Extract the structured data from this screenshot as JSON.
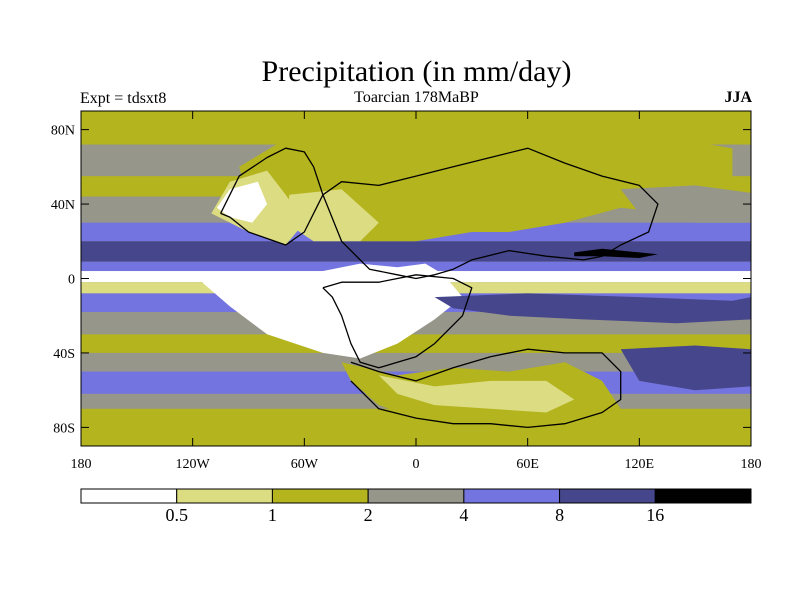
{
  "chart_data": {
    "type": "heatmap",
    "title": "Precipitation (in mm/day)",
    "experiment_label": "Expt = tdsxt8",
    "subtitle": "Toarcian 178MaBP",
    "season": "JJA",
    "x_ticks": [
      "180",
      "120W",
      "60W",
      "0",
      "60E",
      "120E",
      "180"
    ],
    "x_tick_values": [
      -180,
      -120,
      -60,
      0,
      60,
      120,
      180
    ],
    "y_ticks": [
      "80N",
      "40N",
      "0",
      "40S",
      "80S"
    ],
    "y_tick_values": [
      80,
      40,
      0,
      -40,
      -80
    ],
    "xlim": [
      -180,
      180
    ],
    "ylim": [
      -90,
      90
    ],
    "colorbar": {
      "levels": [
        "0.5",
        "1",
        "2",
        "4",
        "8",
        "16"
      ],
      "colors": [
        "#ffffff",
        "#dcdc82",
        "#b4b41e",
        "#96968a",
        "#7474e0",
        "#46468c",
        "#000000"
      ]
    },
    "zonal_bands": [
      {
        "lat_top": 90,
        "lat_bottom": 72,
        "level": 2
      },
      {
        "lat_top": 72,
        "lat_bottom": 55,
        "level": 3
      },
      {
        "lat_top": 55,
        "lat_bottom": 44,
        "level": 2
      },
      {
        "lat_top": 44,
        "lat_bottom": 30,
        "level": 3
      },
      {
        "lat_top": 30,
        "lat_bottom": 20,
        "level": 4
      },
      {
        "lat_top": 20,
        "lat_bottom": 9,
        "level": 5
      },
      {
        "lat_top": 9,
        "lat_bottom": 4,
        "level": 4
      },
      {
        "lat_top": 4,
        "lat_bottom": -2,
        "level": 0
      },
      {
        "lat_top": -2,
        "lat_bottom": -8,
        "level": 1
      },
      {
        "lat_top": -8,
        "lat_bottom": -18,
        "level": 4
      },
      {
        "lat_top": -18,
        "lat_bottom": -30,
        "level": 3
      },
      {
        "lat_top": -30,
        "lat_bottom": -40,
        "level": 2
      },
      {
        "lat_top": -40,
        "lat_bottom": -50,
        "level": 3
      },
      {
        "lat_top": -50,
        "lat_bottom": -62,
        "level": 4
      },
      {
        "lat_top": -62,
        "lat_bottom": -70,
        "level": 3
      },
      {
        "lat_top": -70,
        "lat_bottom": -90,
        "level": 2
      }
    ],
    "regions": [
      {
        "name": "northern-continent-dry",
        "level": 2,
        "lon": [
          -95,
          -70,
          -40,
          -20,
          10,
          40,
          60,
          80,
          110,
          140,
          170,
          170,
          140,
          110,
          80,
          50,
          30,
          0,
          -30,
          -60,
          -90
        ],
        "lat": [
          60,
          75,
          80,
          78,
          80,
          75,
          80,
          78,
          80,
          75,
          70,
          40,
          35,
          38,
          30,
          25,
          25,
          20,
          20,
          30,
          40
        ]
      },
      {
        "name": "north-america-dry",
        "level": 1,
        "lon": [
          -100,
          -80,
          -70,
          -60,
          -70,
          -90,
          -110
        ],
        "lat": [
          52,
          58,
          45,
          30,
          18,
          25,
          35
        ]
      },
      {
        "name": "north-america-very-dry",
        "level": 0,
        "lon": [
          -100,
          -85,
          -80,
          -88,
          -100,
          -107
        ],
        "lat": [
          48,
          52,
          40,
          30,
          33,
          38
        ]
      },
      {
        "name": "central-pangea-dry",
        "level": 1,
        "lon": [
          -68,
          -40,
          -20,
          -30,
          -55,
          -70
        ],
        "lat": [
          45,
          48,
          30,
          20,
          20,
          30
        ]
      },
      {
        "name": "tropical-west-dry",
        "level": 0,
        "lon": [
          -115,
          -60,
          -30,
          -10,
          5,
          15,
          25,
          10,
          -10,
          -30,
          -50,
          -80,
          -100
        ],
        "lat": [
          -2,
          2,
          8,
          6,
          8,
          2,
          -10,
          -22,
          -35,
          -43,
          -40,
          -30,
          -15
        ]
      },
      {
        "name": "gondwana-south-dry",
        "level": 2,
        "lon": [
          -40,
          -10,
          20,
          50,
          80,
          100,
          110,
          90,
          60,
          30,
          0,
          -20,
          -35
        ],
        "lat": [
          -45,
          -52,
          -48,
          -50,
          -45,
          -55,
          -70,
          -78,
          -80,
          -78,
          -75,
          -68,
          -55
        ]
      },
      {
        "name": "gondwana-south-light",
        "level": 1,
        "lon": [
          -20,
          10,
          40,
          70,
          85,
          70,
          40,
          10,
          -10
        ],
        "lat": [
          -52,
          -58,
          -55,
          -55,
          -65,
          -72,
          -70,
          -68,
          -62
        ]
      },
      {
        "name": "east-tropical-wet",
        "level": 5,
        "lon": [
          10,
          60,
          120,
          170,
          180,
          180,
          140,
          90,
          50,
          20
        ],
        "lat": [
          -10,
          -8,
          -10,
          -12,
          -10,
          -22,
          -24,
          -22,
          -20,
          -16
        ]
      },
      {
        "name": "east-south-wet",
        "level": 5,
        "lon": [
          110,
          150,
          180,
          180,
          150,
          120
        ],
        "lat": [
          -38,
          -36,
          -38,
          -58,
          -60,
          -55
        ]
      },
      {
        "name": "north-tropical-wet-core",
        "level": 6,
        "lon": [
          85,
          100,
          120,
          130,
          120,
          100,
          85
        ],
        "lat": [
          14,
          16,
          14,
          13,
          11,
          12,
          12
        ]
      },
      {
        "name": "east-north-band-gray",
        "level": 3,
        "lon": [
          110,
          150,
          180,
          180,
          150,
          120
        ],
        "lat": [
          48,
          50,
          46,
          30,
          30,
          35
        ]
      }
    ],
    "coastlines": [
      {
        "lon": [
          -105,
          -95,
          -80,
          -70,
          -60,
          -55,
          -50,
          -55,
          -60,
          -70,
          -90,
          -100,
          -105
        ],
        "lat": [
          35,
          55,
          65,
          70,
          68,
          60,
          45,
          35,
          25,
          18,
          25,
          33,
          35
        ]
      },
      {
        "lon": [
          -50,
          -40,
          -20,
          0,
          20,
          40,
          60,
          80,
          100,
          120,
          130,
          125,
          110,
          100,
          90,
          70,
          50,
          30,
          20,
          10,
          0,
          -10,
          -25,
          -40,
          -50
        ],
        "lat": [
          45,
          52,
          50,
          55,
          60,
          65,
          70,
          62,
          55,
          50,
          40,
          25,
          18,
          12,
          10,
          12,
          15,
          10,
          5,
          2,
          0,
          2,
          5,
          20,
          45
        ]
      },
      {
        "lon": [
          -50,
          -40,
          -20,
          0,
          20,
          30,
          25,
          10,
          0,
          -10,
          -20,
          -30,
          -35,
          -40,
          -45,
          -50
        ],
        "lat": [
          -5,
          -2,
          -2,
          2,
          0,
          -5,
          -20,
          -35,
          -42,
          -45,
          -48,
          -45,
          -35,
          -20,
          -10,
          -5
        ]
      },
      {
        "lon": [
          -35,
          -20,
          0,
          20,
          40,
          60,
          80,
          100,
          110,
          110,
          100,
          80,
          60,
          40,
          20,
          0,
          -20,
          -35
        ],
        "lat": [
          -45,
          -50,
          -55,
          -48,
          -42,
          -38,
          -40,
          -40,
          -50,
          -65,
          -72,
          -78,
          -80,
          -78,
          -78,
          -75,
          -70,
          -55
        ]
      }
    ]
  }
}
